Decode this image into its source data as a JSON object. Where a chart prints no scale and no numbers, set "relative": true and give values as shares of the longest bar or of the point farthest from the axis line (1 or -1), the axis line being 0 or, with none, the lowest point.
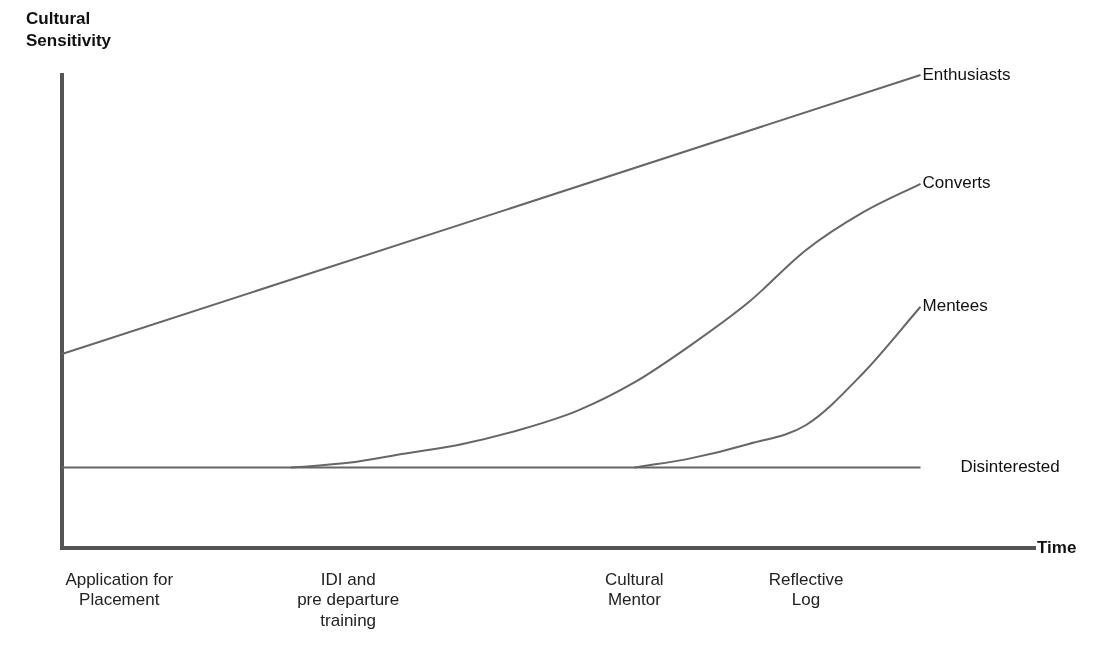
{
  "chart_data": {
    "type": "line",
    "relative": true,
    "xlabel": "Time",
    "ylabel": "Cultural Sensitivity",
    "categories": [
      null,
      "Application for\nPlacement",
      null,
      null,
      null,
      "IDI and\npre departure\ntraining",
      null,
      null,
      null,
      null,
      "Cultural\nMentor",
      null,
      null,
      "Reflective\nLog",
      null,
      null,
      null,
      null
    ],
    "series": [
      {
        "name": "Enthusiasts",
        "color": "#666666",
        "values": [
          0.41,
          null,
          null,
          null,
          null,
          null,
          null,
          null,
          null,
          null,
          null,
          null,
          null,
          null,
          null,
          1,
          null,
          null
        ]
      },
      {
        "name": "Converts",
        "color": "#666666",
        "values": [
          null,
          null,
          null,
          null,
          0.17,
          0.18,
          0.2,
          0.22,
          0.25,
          0.29,
          0.35,
          0.43,
          0.52,
          0.63,
          0.71,
          0.77,
          null,
          null
        ]
      },
      {
        "name": "Mentees",
        "color": "#666666",
        "values": [
          null,
          null,
          null,
          null,
          null,
          null,
          null,
          null,
          null,
          null,
          0.17,
          0.19,
          0.22,
          0.26,
          0.37,
          0.51,
          null,
          null
        ]
      },
      {
        "name": "Disinterested",
        "color": "#666666",
        "values": [
          0.17,
          null,
          null,
          null,
          null,
          null,
          null,
          null,
          null,
          null,
          null,
          null,
          null,
          null,
          null,
          0.17,
          null,
          null
        ]
      }
    ],
    "grid": false,
    "legend": false
  }
}
